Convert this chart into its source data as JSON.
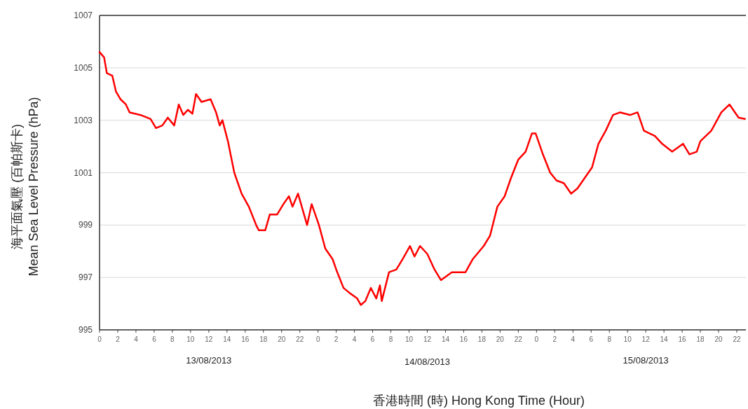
{
  "chart_data": {
    "type": "line",
    "xlabel": "香港時間 (時) Hong Kong Time (Hour)",
    "ylabel": "海平面氣壓 (百帕斯卡)\nMean Sea Level Pressure (hPa)",
    "grid": "y",
    "marker": "none",
    "line_style": "solid",
    "xlim": [
      "2013-08-13T00:00",
      "2013-08-15T23:00"
    ],
    "ylim": [
      995,
      1007
    ],
    "yticks": [
      995,
      997,
      999,
      1001,
      1003,
      1005,
      1007
    ],
    "xticks": [
      {
        "value": "2013-08-13T00:00",
        "label": "0"
      },
      {
        "value": "2013-08-13T02:00",
        "label": "2"
      },
      {
        "value": "2013-08-13T04:00",
        "label": "4"
      },
      {
        "value": "2013-08-13T06:00",
        "label": "6"
      },
      {
        "value": "2013-08-13T08:00",
        "label": "8"
      },
      {
        "value": "2013-08-13T10:00",
        "label": "10"
      },
      {
        "value": "2013-08-13T12:00",
        "label": "12"
      },
      {
        "value": "2013-08-13T14:00",
        "label": "14"
      },
      {
        "value": "2013-08-13T16:00",
        "label": "16"
      },
      {
        "value": "2013-08-13T18:00",
        "label": "18"
      },
      {
        "value": "2013-08-13T20:00",
        "label": "20"
      },
      {
        "value": "2013-08-13T22:00",
        "label": "22"
      },
      {
        "value": "2013-08-14T00:00",
        "label": "0"
      },
      {
        "value": "2013-08-14T02:00",
        "label": "2"
      },
      {
        "value": "2013-08-14T04:00",
        "label": "4"
      },
      {
        "value": "2013-08-14T06:00",
        "label": "6"
      },
      {
        "value": "2013-08-14T08:00",
        "label": "8"
      },
      {
        "value": "2013-08-14T10:00",
        "label": "10"
      },
      {
        "value": "2013-08-14T12:00",
        "label": "12"
      },
      {
        "value": "2013-08-14T14:00",
        "label": "14"
      },
      {
        "value": "2013-08-14T16:00",
        "label": "16"
      },
      {
        "value": "2013-08-14T18:00",
        "label": "18"
      },
      {
        "value": "2013-08-14T20:00",
        "label": "20"
      },
      {
        "value": "2013-08-14T22:00",
        "label": "22"
      },
      {
        "value": "2013-08-15T00:00",
        "label": "0"
      },
      {
        "value": "2013-08-15T02:00",
        "label": "2"
      },
      {
        "value": "2013-08-15T04:00",
        "label": "4"
      },
      {
        "value": "2013-08-15T06:00",
        "label": "6"
      },
      {
        "value": "2013-08-15T08:00",
        "label": "8"
      },
      {
        "value": "2013-08-15T10:00",
        "label": "10"
      },
      {
        "value": "2013-08-15T12:00",
        "label": "12"
      },
      {
        "value": "2013-08-15T14:00",
        "label": "14"
      },
      {
        "value": "2013-08-15T16:00",
        "label": "16"
      },
      {
        "value": "2013-08-15T18:00",
        "label": "18"
      },
      {
        "value": "2013-08-15T20:00",
        "label": "20"
      },
      {
        "value": "2013-08-15T22:00",
        "label": "22"
      }
    ],
    "annotations": [
      "13/08/2013",
      "14/08/2013",
      "15/08/2013"
    ],
    "series": [
      {
        "color": "#ff0000",
        "x": [
          "2013-08-13T00:00",
          "2013-08-13T00:30",
          "2013-08-13T00:48",
          "2013-08-13T01:24",
          "2013-08-13T01:48",
          "2013-08-13T02:18",
          "2013-08-13T02:54",
          "2013-08-13T03:18",
          "2013-08-13T04:30",
          "2013-08-13T05:36",
          "2013-08-13T06:12",
          "2013-08-13T06:54",
          "2013-08-13T07:30",
          "2013-08-13T08:12",
          "2013-08-13T08:42",
          "2013-08-13T09:12",
          "2013-08-13T09:42",
          "2013-08-13T10:12",
          "2013-08-13T10:36",
          "2013-08-13T11:12",
          "2013-08-13T12:12",
          "2013-08-13T12:48",
          "2013-08-13T13:12",
          "2013-08-13T13:30",
          "2013-08-13T14:06",
          "2013-08-13T14:48",
          "2013-08-13T15:36",
          "2013-08-13T16:24",
          "2013-08-13T17:12",
          "2013-08-13T17:30",
          "2013-08-13T18:12",
          "2013-08-13T18:42",
          "2013-08-13T19:30",
          "2013-08-13T20:12",
          "2013-08-13T20:48",
          "2013-08-13T21:12",
          "2013-08-13T21:48",
          "2013-08-13T22:18",
          "2013-08-13T22:48",
          "2013-08-13T23:18",
          "2013-08-14T00:06",
          "2013-08-14T00:48",
          "2013-08-14T01:36",
          "2013-08-14T02:00",
          "2013-08-14T02:48",
          "2013-08-14T03:30",
          "2013-08-14T04:18",
          "2013-08-14T04:42",
          "2013-08-14T05:12",
          "2013-08-14T05:48",
          "2013-08-14T06:24",
          "2013-08-14T06:48",
          "2013-08-14T07:00",
          "2013-08-14T07:48",
          "2013-08-14T08:36",
          "2013-08-14T09:18",
          "2013-08-14T10:06",
          "2013-08-14T10:36",
          "2013-08-14T11:12",
          "2013-08-14T12:00",
          "2013-08-14T12:48",
          "2013-08-14T13:30",
          "2013-08-14T14:42",
          "2013-08-14T16:12",
          "2013-08-14T17:00",
          "2013-08-14T18:12",
          "2013-08-14T18:54",
          "2013-08-14T19:42",
          "2013-08-14T20:30",
          "2013-08-14T21:12",
          "2013-08-14T22:00",
          "2013-08-14T22:48",
          "2013-08-14T23:30",
          "2013-08-14T23:54",
          "2013-08-15T00:42",
          "2013-08-15T01:30",
          "2013-08-15T02:12",
          "2013-08-15T03:00",
          "2013-08-15T03:48",
          "2013-08-15T04:30",
          "2013-08-15T05:18",
          "2013-08-15T06:06",
          "2013-08-15T06:48",
          "2013-08-15T07:36",
          "2013-08-15T08:24",
          "2013-08-15T09:12",
          "2013-08-15T10:18",
          "2013-08-15T11:06",
          "2013-08-15T11:48",
          "2013-08-15T13:00",
          "2013-08-15T13:48",
          "2013-08-15T14:54",
          "2013-08-15T16:06",
          "2013-08-15T16:48",
          "2013-08-15T17:36",
          "2013-08-15T18:00",
          "2013-08-15T19:12",
          "2013-08-15T20:18",
          "2013-08-15T21:12",
          "2013-08-15T22:12",
          "2013-08-15T22:54"
        ],
        "values": [
          1005.6,
          1005.4,
          1004.8,
          1004.7,
          1004.1,
          1003.8,
          1003.6,
          1003.3,
          1003.2,
          1003.05,
          1002.7,
          1002.8,
          1003.1,
          1002.8,
          1003.6,
          1003.2,
          1003.4,
          1003.25,
          1004.0,
          1003.7,
          1003.8,
          1003.3,
          1002.8,
          1003.0,
          1002.2,
          1001.0,
          1000.2,
          999.7,
          999.0,
          998.8,
          998.8,
          999.4,
          999.4,
          999.8,
          1000.1,
          999.7,
          1000.2,
          999.6,
          999.0,
          999.8,
          999.0,
          998.1,
          997.7,
          997.3,
          996.6,
          996.4,
          996.2,
          995.95,
          996.1,
          996.6,
          996.2,
          996.7,
          996.1,
          997.2,
          997.3,
          997.7,
          998.2,
          997.8,
          998.2,
          997.9,
          997.3,
          996.9,
          997.2,
          997.2,
          997.7,
          998.2,
          998.6,
          999.7,
          1000.1,
          1000.8,
          1001.5,
          1001.8,
          1002.5,
          1002.5,
          1001.7,
          1001.0,
          1000.7,
          1000.6,
          1000.2,
          1000.4,
          1000.8,
          1001.2,
          1002.1,
          1002.6,
          1003.2,
          1003.3,
          1003.2,
          1003.3,
          1002.6,
          1002.4,
          1002.1,
          1001.8,
          1002.1,
          1001.7,
          1001.8,
          1002.2,
          1002.6,
          1003.3,
          1003.6,
          1003.1,
          1003.05
        ]
      }
    ]
  }
}
